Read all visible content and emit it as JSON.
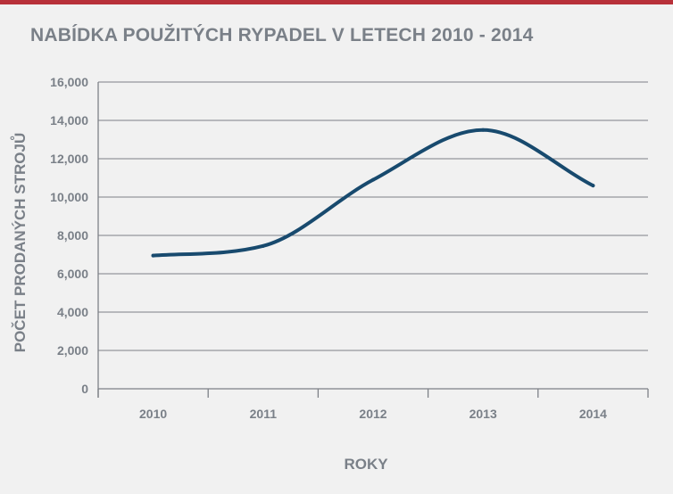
{
  "colors": {
    "top_bar": "#b8313a",
    "background": "#f1f1f1",
    "title_text": "#7a8088",
    "axis_text": "#7a8088",
    "grid": "#7d8087",
    "series": "#184a6e"
  },
  "chart_data": {
    "type": "line",
    "title": "NABÍDKA POUŽITÝCH RYPADEL V LETECH 2010 - 2014",
    "xlabel": "ROKY",
    "ylabel": "POČET PRODANÝCH STROJŮ",
    "categories": [
      "2010",
      "2011",
      "2012",
      "2013",
      "2014"
    ],
    "y_ticks": [
      "0",
      "2,000",
      "4,000",
      "6,000",
      "8,000",
      "10,000",
      "12,000",
      "14,000",
      "16,000"
    ],
    "ylim": [
      0,
      16000
    ],
    "grid": true,
    "smooth": true,
    "series": [
      {
        "values": [
          6950,
          7450,
          10900,
          13500,
          10600
        ]
      }
    ]
  }
}
